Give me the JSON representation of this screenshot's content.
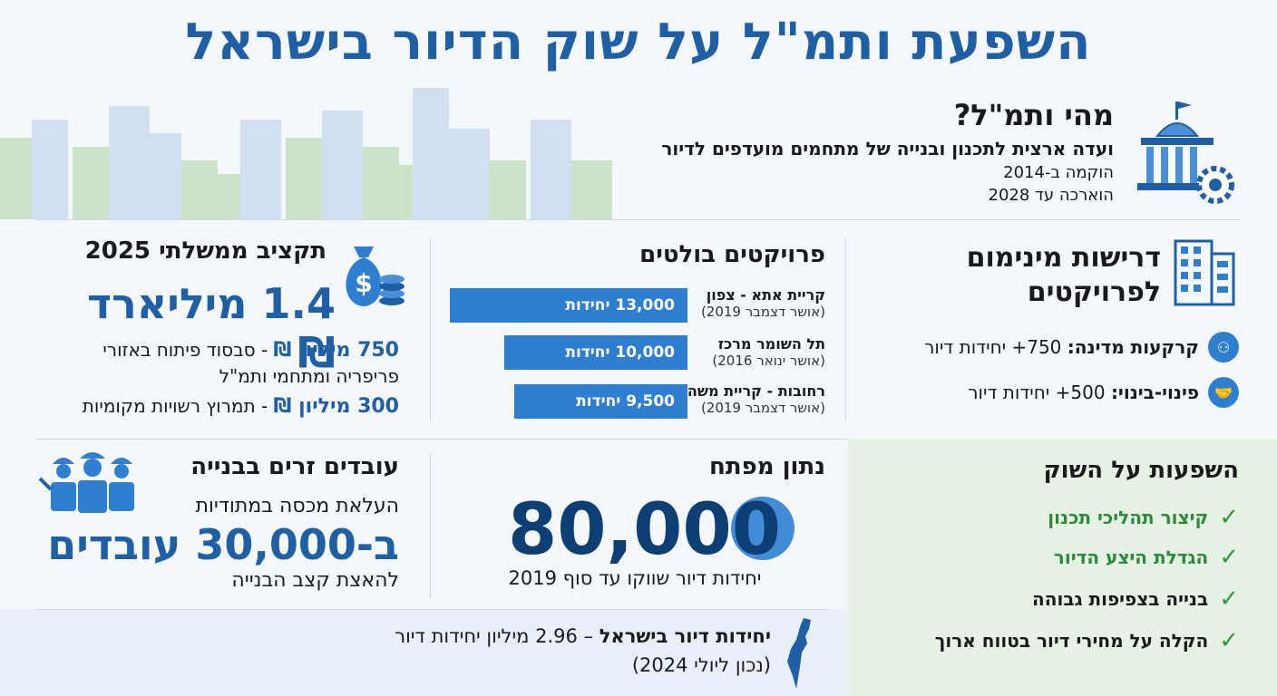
{
  "title": "השפעת ותמ\"ל על שוק הדיור בישראל",
  "whatis": {
    "question": "מהי ותמ\"ל?",
    "definition": "ועדה ארצית לתכנון ובנייה של מתחמים מועדפים לדיור",
    "established": "הוקמה ב-2014",
    "extended": "הוארכה עד 2028"
  },
  "budget": {
    "heading": "תקציב ממשלתי 2025",
    "total": "1.4 מיליארד ₪",
    "item1_amount": "750 מיליון ₪",
    "item1_text": " - סבסוד פיתוח באזורי פריפריה ומתחמי ותמ\"ל",
    "item2_amount": "300 מיליון ₪",
    "item2_text": " - תמרוץ רשויות מקומיות"
  },
  "projects": {
    "heading": "פרויקטים בולטים",
    "items": [
      {
        "name": "קריית אתא - צפון",
        "date": "(אושר דצמבר 2019)",
        "bar_label": "13,000 יחידות"
      },
      {
        "name": "תל השומר מרכז",
        "date": "(אושר ינואר 2016)",
        "bar_label": "10,000 יחידות"
      },
      {
        "name": "רחובות - קריית משה",
        "date": "(אושר דצמבר 2019)",
        "bar_label": "9,500 יחידות"
      }
    ]
  },
  "chart_data": {
    "type": "bar",
    "categories": [
      "קריית אתא - צפון",
      "תל השומר מרכז",
      "רחובות - קריית משה"
    ],
    "values": [
      13000,
      10000,
      9500
    ],
    "title": "פרויקטים בולטים",
    "xlabel": "",
    "ylabel": "",
    "units": "יחידות"
  },
  "requirements": {
    "heading_line1": "דרישות מינימום",
    "heading_line2": "לפרויקטים",
    "row1_bold": "קרקעות מדינה:",
    "row1_text": " 750+ יחידות דיור",
    "row2_bold": "פינוי-בינוי:",
    "row2_text": " 500+ יחידות דיור"
  },
  "workers": {
    "heading": "עובדים זרים בבנייה",
    "line1": "העלאת מכסה במתודיות",
    "big": "ב-30,000 עובדים",
    "line2": "להאצת קצב הבנייה"
  },
  "keystat": {
    "heading": "נתון מפתח",
    "number": "80,000",
    "caption": "יחידות דיור שווקו עד סוף 2019"
  },
  "impacts": {
    "heading": "השפעות על השוק",
    "items": [
      {
        "text": "קיצור תהליכי תכנון",
        "green": true
      },
      {
        "text": "הגדלת היצע הדיור",
        "green": true
      },
      {
        "text": "בנייה בצפיפות גבוהה",
        "green": false
      },
      {
        "text": "הקלה על מחירי דיור בטווח ארוך",
        "green": false
      }
    ]
  },
  "israel": {
    "bold": "יחידות דיור בישראל",
    "text": " – 2.96 מיליון יחידות דיור",
    "note": "(נכון ליולי 2024)"
  },
  "colors": {
    "title_blue": "#1f5fa6",
    "bar_blue": "#2f7fd1",
    "check_green": "#2a9a3a",
    "impact_panel": "#e6f3e4"
  },
  "icons": [
    "government-building-icon",
    "money-bag-icon",
    "building-icon",
    "workers-icon",
    "israel-map-icon",
    "hierarchy-icon",
    "handshake-icon",
    "check-icon"
  ]
}
